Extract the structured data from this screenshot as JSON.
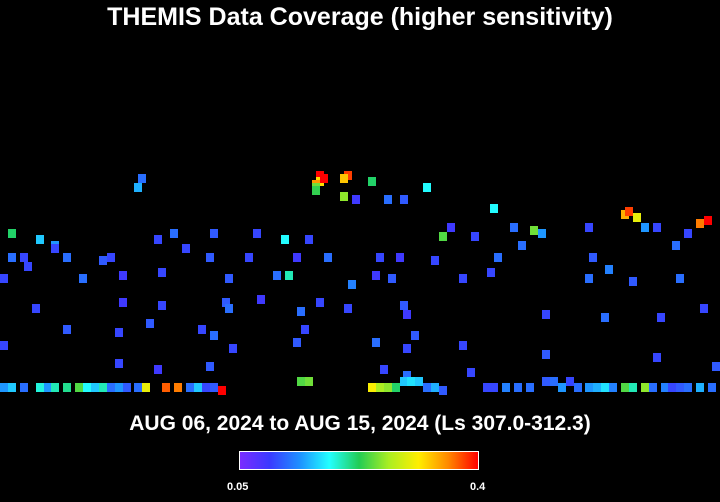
{
  "title": "THEMIS Data Coverage (higher sensitivity)",
  "date_range": "AUG 06, 2024 to AUG 15, 2024 (Ls 307.0-312.3)",
  "colorbar": {
    "min_label": "0.05",
    "max_label": "0.4",
    "min_value": 0.05,
    "max_value": 0.4,
    "colors": [
      "#7a2cff",
      "#3a3aff",
      "#1e90ff",
      "#22ffff",
      "#22cc55",
      "#aaee22",
      "#ffee00",
      "#ff8800",
      "#ff0000"
    ]
  },
  "chart_data": {
    "type": "heatmap",
    "title": "THEMIS Data Coverage (higher sensitivity)",
    "subtitle": "AUG 06, 2024 to AUG 15, 2024 (Ls 307.0-312.3)",
    "grid": false,
    "scale": [
      0.05,
      0.4
    ],
    "cells": [
      [
        80,
        148,
        0.4
      ],
      [
        80,
        146,
        0.32
      ],
      [
        81,
        147,
        0.4
      ],
      [
        79,
        145,
        0.35
      ],
      [
        79,
        144,
        0.25
      ],
      [
        79,
        143,
        0.23
      ],
      [
        87,
        148,
        0.38
      ],
      [
        86,
        147,
        0.33
      ],
      [
        35,
        147,
        0.12
      ],
      [
        34,
        144,
        0.15
      ],
      [
        93,
        146,
        0.22
      ],
      [
        107,
        144,
        0.18
      ],
      [
        2,
        129,
        0.22
      ],
      [
        9,
        127,
        0.16
      ],
      [
        13,
        125,
        0.14
      ],
      [
        13,
        124,
        0.1
      ],
      [
        39,
        127,
        0.1
      ],
      [
        43,
        129,
        0.12
      ],
      [
        53,
        129,
        0.11
      ],
      [
        64,
        129,
        0.1
      ],
      [
        71,
        127,
        0.18
      ],
      [
        77,
        127,
        0.1
      ],
      [
        86,
        141,
        0.26
      ],
      [
        89,
        140,
        0.09
      ],
      [
        97,
        140,
        0.12
      ],
      [
        101,
        140,
        0.11
      ],
      [
        111,
        128,
        0.24
      ],
      [
        113,
        131,
        0.09
      ],
      [
        119,
        128,
        0.1
      ],
      [
        124,
        137,
        0.18
      ],
      [
        129,
        131,
        0.12
      ],
      [
        134,
        130,
        0.25
      ],
      [
        136,
        129,
        0.14
      ],
      [
        131,
        125,
        0.12
      ],
      [
        148,
        131,
        0.1
      ],
      [
        157,
        135,
        0.34
      ],
      [
        158,
        136,
        0.38
      ],
      [
        160,
        134,
        0.3
      ],
      [
        162,
        131,
        0.14
      ],
      [
        165,
        131,
        0.1
      ],
      [
        176,
        132,
        0.36
      ],
      [
        178,
        133,
        0.4
      ],
      [
        170,
        125,
        0.12
      ],
      [
        173,
        129,
        0.1
      ],
      [
        5,
        121,
        0.1
      ],
      [
        2,
        121,
        0.12
      ],
      [
        6,
        118,
        0.1
      ],
      [
        16,
        121,
        0.12
      ],
      [
        25,
        120,
        0.11
      ],
      [
        27,
        121,
        0.1
      ],
      [
        46,
        124,
        0.1
      ],
      [
        52,
        121,
        0.11
      ],
      [
        62,
        121,
        0.1
      ],
      [
        74,
        121,
        0.09
      ],
      [
        82,
        121,
        0.12
      ],
      [
        95,
        121,
        0.1
      ],
      [
        100,
        121,
        0.09
      ],
      [
        109,
        120,
        0.1
      ],
      [
        125,
        121,
        0.12
      ],
      [
        149,
        121,
        0.11
      ],
      [
        153,
        117,
        0.13
      ],
      [
        0,
        114,
        0.1
      ],
      [
        20,
        114,
        0.12
      ],
      [
        30,
        115,
        0.09
      ],
      [
        40,
        116,
        0.1
      ],
      [
        57,
        114,
        0.11
      ],
      [
        69,
        115,
        0.12
      ],
      [
        72,
        115,
        0.2
      ],
      [
        88,
        112,
        0.13
      ],
      [
        94,
        115,
        0.09
      ],
      [
        98,
        114,
        0.11
      ],
      [
        116,
        114,
        0.1
      ],
      [
        123,
        116,
        0.1
      ],
      [
        148,
        114,
        0.12
      ],
      [
        159,
        113,
        0.11
      ],
      [
        171,
        114,
        0.12
      ],
      [
        8,
        104,
        0.1
      ],
      [
        30,
        106,
        0.09
      ],
      [
        40,
        105,
        0.1
      ],
      [
        56,
        106,
        0.11
      ],
      [
        57,
        104,
        0.12
      ],
      [
        65,
        107,
        0.09
      ],
      [
        75,
        103,
        0.12
      ],
      [
        80,
        106,
        0.1
      ],
      [
        87,
        104,
        0.1
      ],
      [
        101,
        105,
        0.11
      ],
      [
        102,
        102,
        0.09
      ],
      [
        137,
        102,
        0.1
      ],
      [
        152,
        101,
        0.12
      ],
      [
        166,
        101,
        0.1
      ],
      [
        177,
        104,
        0.1
      ],
      [
        0,
        92,
        0.1
      ],
      [
        16,
        97,
        0.11
      ],
      [
        29,
        96,
        0.1
      ],
      [
        37,
        99,
        0.11
      ],
      [
        50,
        97,
        0.1
      ],
      [
        53,
        95,
        0.12
      ],
      [
        58,
        91,
        0.1
      ],
      [
        74,
        93,
        0.11
      ],
      [
        76,
        97,
        0.1
      ],
      [
        94,
        93,
        0.12
      ],
      [
        102,
        91,
        0.1
      ],
      [
        104,
        95,
        0.11
      ],
      [
        116,
        92,
        0.1
      ],
      [
        137,
        89,
        0.11
      ],
      [
        165,
        88,
        0.1
      ],
      [
        29,
        86,
        0.1
      ],
      [
        39,
        84,
        0.09
      ],
      [
        52,
        85,
        0.11
      ],
      [
        96,
        84,
        0.1
      ],
      [
        102,
        82,
        0.12
      ],
      [
        118,
        83,
        0.1
      ],
      [
        180,
        85,
        0.11
      ],
      [
        0,
        78,
        0.14
      ],
      [
        2,
        78,
        0.16
      ],
      [
        5,
        78,
        0.12
      ],
      [
        9,
        78,
        0.19
      ],
      [
        11,
        78,
        0.14
      ],
      [
        13,
        78,
        0.2
      ],
      [
        16,
        78,
        0.21
      ],
      [
        19,
        78,
        0.24
      ],
      [
        21,
        78,
        0.18
      ],
      [
        23,
        78,
        0.16
      ],
      [
        25,
        78,
        0.2
      ],
      [
        27,
        78,
        0.12
      ],
      [
        29,
        78,
        0.14
      ],
      [
        31,
        78,
        0.11
      ],
      [
        34,
        78,
        0.12
      ],
      [
        36,
        78,
        0.3
      ],
      [
        41,
        78,
        0.37
      ],
      [
        44,
        78,
        0.36
      ],
      [
        47,
        78,
        0.12
      ],
      [
        49,
        78,
        0.16
      ],
      [
        51,
        78,
        0.1
      ],
      [
        53,
        78,
        0.11
      ],
      [
        55,
        77,
        0.4
      ],
      [
        75,
        80,
        0.24
      ],
      [
        77,
        80,
        0.25
      ],
      [
        93,
        78,
        0.31
      ],
      [
        95,
        78,
        0.27
      ],
      [
        97,
        78,
        0.26
      ],
      [
        99,
        78,
        0.22
      ],
      [
        101,
        80,
        0.16
      ],
      [
        103,
        80,
        0.17
      ],
      [
        105,
        80,
        0.16
      ],
      [
        107,
        78,
        0.12
      ],
      [
        109,
        78,
        0.15
      ],
      [
        111,
        77,
        0.11
      ],
      [
        122,
        78,
        0.1
      ],
      [
        124,
        78,
        0.1
      ],
      [
        127,
        78,
        0.13
      ],
      [
        130,
        78,
        0.12
      ],
      [
        133,
        78,
        0.12
      ],
      [
        137,
        80,
        0.11
      ],
      [
        139,
        80,
        0.12
      ],
      [
        141,
        78,
        0.14
      ],
      [
        143,
        80,
        0.1
      ],
      [
        145,
        78,
        0.12
      ],
      [
        148,
        78,
        0.14
      ],
      [
        150,
        78,
        0.15
      ],
      [
        152,
        78,
        0.17
      ],
      [
        154,
        78,
        0.13
      ],
      [
        157,
        78,
        0.24
      ],
      [
        159,
        78,
        0.2
      ],
      [
        162,
        78,
        0.26
      ],
      [
        164,
        78,
        0.12
      ],
      [
        167,
        78,
        0.13
      ],
      [
        169,
        78,
        0.1
      ],
      [
        171,
        78,
        0.11
      ],
      [
        173,
        78,
        0.12
      ],
      [
        176,
        78,
        0.15
      ],
      [
        179,
        78,
        0.12
      ]
    ]
  }
}
